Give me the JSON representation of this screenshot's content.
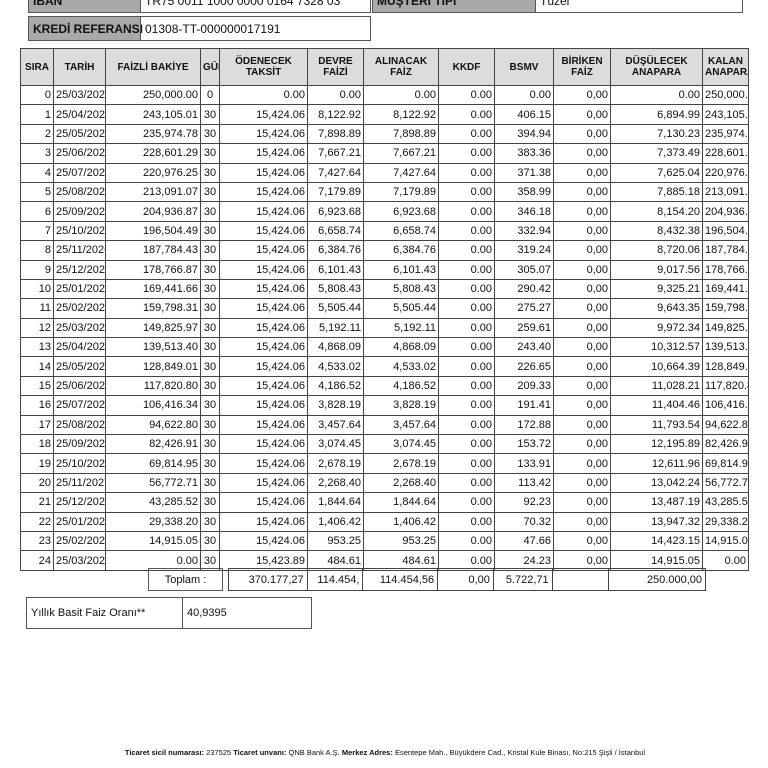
{
  "info": {
    "iban_label": "IBAN",
    "iban_value": "TR75 0011 1000 0000 0164 7328 03",
    "customer_type_label": "MÜŞTERİ TİPİ",
    "customer_type_value": "Tüzel",
    "credit_ref_label": "KREDİ REFERANSI",
    "credit_ref_value": "01308-TT-000000017191"
  },
  "table": {
    "headers": [
      "SIRA",
      "TARİH",
      "FAİZLİ BAKİYE",
      "GÜN",
      "ÖDENECEK TAKSİT",
      "DEVRE FAİZİ",
      "ALINACAK FAİZ",
      "KKDF",
      "BSMV",
      "BİRİKEN FAİZ",
      "DÜŞÜLECEK ANAPARA",
      "KALAN ANAPARA"
    ],
    "rows": [
      [
        "0",
        "25/03/2026",
        "250,000.00",
        "0",
        "0.00",
        "0.00",
        "0.00",
        "0.00",
        "0.00",
        "0,00",
        "0.00",
        "250,000.0"
      ],
      [
        "1",
        "25/04/2026",
        "243,105.01",
        "30",
        "15,424.06",
        "8,122.92",
        "8,122.92",
        "0.00",
        "406.15",
        "0,00",
        "6,894.99",
        "243,105.0"
      ],
      [
        "2",
        "25/05/2026",
        "235,974.78",
        "30",
        "15,424.06",
        "7,898.89",
        "7,898.89",
        "0.00",
        "394.94",
        "0,00",
        "7,130.23",
        "235,974.7"
      ],
      [
        "3",
        "25/06/2026",
        "228,601.29",
        "30",
        "15,424.06",
        "7,667.21",
        "7,667.21",
        "0.00",
        "383.36",
        "0,00",
        "7,373.49",
        "228,601.2"
      ],
      [
        "4",
        "25/07/2026",
        "220,976.25",
        "30",
        "15,424.06",
        "7,427.64",
        "7,427.64",
        "0.00",
        "371.38",
        "0,00",
        "7,625.04",
        "220,976.2"
      ],
      [
        "5",
        "25/08/2026",
        "213,091.07",
        "30",
        "15,424.06",
        "7,179.89",
        "7,179.89",
        "0.00",
        "358.99",
        "0,00",
        "7,885.18",
        "213,091.0"
      ],
      [
        "6",
        "25/09/2026",
        "204,936.87",
        "30",
        "15,424.06",
        "6,923.68",
        "6,923.68",
        "0.00",
        "346.18",
        "0,00",
        "8,154.20",
        "204,936.8"
      ],
      [
        "7",
        "25/10/2026",
        "196,504.49",
        "30",
        "15,424.06",
        "6,658.74",
        "6,658.74",
        "0.00",
        "332.94",
        "0,00",
        "8,432.38",
        "196,504.4"
      ],
      [
        "8",
        "25/11/2026",
        "187,784.43",
        "30",
        "15,424.06",
        "6,384.76",
        "6,384.76",
        "0.00",
        "319.24",
        "0,00",
        "8,720.06",
        "187,784.4"
      ],
      [
        "9",
        "25/12/2026",
        "178,766.87",
        "30",
        "15,424.06",
        "6,101.43",
        "6,101.43",
        "0.00",
        "305.07",
        "0,00",
        "9,017.56",
        "178,766.8"
      ],
      [
        "10",
        "25/01/2027",
        "169,441.66",
        "30",
        "15,424.06",
        "5,808.43",
        "5,808.43",
        "0.00",
        "290.42",
        "0,00",
        "9,325.21",
        "169,441.6"
      ],
      [
        "11",
        "25/02/2027",
        "159,798.31",
        "30",
        "15,424.06",
        "5,505.44",
        "5,505.44",
        "0.00",
        "275.27",
        "0,00",
        "9,643.35",
        "159,798.3"
      ],
      [
        "12",
        "25/03/2027",
        "149,825.97",
        "30",
        "15,424.06",
        "5,192.11",
        "5,192.11",
        "0.00",
        "259.61",
        "0,00",
        "9,972.34",
        "149,825.9"
      ],
      [
        "13",
        "25/04/2027",
        "139,513.40",
        "30",
        "15,424.06",
        "4,868.09",
        "4,868.09",
        "0.00",
        "243.40",
        "0,00",
        "10,312.57",
        "139,513.4"
      ],
      [
        "14",
        "25/05/2027",
        "128,849.01",
        "30",
        "15,424.06",
        "4,533.02",
        "4,533.02",
        "0.00",
        "226.65",
        "0,00",
        "10,664.39",
        "128,849.0"
      ],
      [
        "15",
        "25/06/2027",
        "117,820.80",
        "30",
        "15,424.06",
        "4,186.52",
        "4,186.52",
        "0.00",
        "209.33",
        "0,00",
        "11,028.21",
        "117,820.8"
      ],
      [
        "16",
        "25/07/2027",
        "106,416.34",
        "30",
        "15,424.06",
        "3,828.19",
        "3,828.19",
        "0.00",
        "191.41",
        "0,00",
        "11,404.46",
        "106,416.3"
      ],
      [
        "17",
        "25/08/2027",
        "94,622.80",
        "30",
        "15,424.06",
        "3,457.64",
        "3,457.64",
        "0.00",
        "172.88",
        "0,00",
        "11,793.54",
        "94,622.80"
      ],
      [
        "18",
        "25/09/2027",
        "82,426.91",
        "30",
        "15,424.06",
        "3,074.45",
        "3,074.45",
        "0.00",
        "153.72",
        "0,00",
        "12,195.89",
        "82,426.91"
      ],
      [
        "19",
        "25/10/2027",
        "69,814.95",
        "30",
        "15,424.06",
        "2,678.19",
        "2,678.19",
        "0.00",
        "133.91",
        "0,00",
        "12,611.96",
        "69,814.95"
      ],
      [
        "20",
        "25/11/2027",
        "56,772.71",
        "30",
        "15,424.06",
        "2,268.40",
        "2,268.40",
        "0.00",
        "113.42",
        "0,00",
        "13,042.24",
        "56,772.71"
      ],
      [
        "21",
        "25/12/2027",
        "43,285.52",
        "30",
        "15,424.06",
        "1,844.64",
        "1,844.64",
        "0.00",
        "92.23",
        "0,00",
        "13,487.19",
        "43,285.52"
      ],
      [
        "22",
        "25/01/2028",
        "29,338.20",
        "30",
        "15,424.06",
        "1,406.42",
        "1,406.42",
        "0.00",
        "70.32",
        "0,00",
        "13,947.32",
        "29,338.20"
      ],
      [
        "23",
        "25/02/2028",
        "14,915.05",
        "30",
        "15,424.06",
        "953.25",
        "953.25",
        "0.00",
        "47.66",
        "0,00",
        "14,423.15",
        "14,915.05"
      ],
      [
        "24",
        "25/03/2028",
        "0.00",
        "30",
        "15,423.89",
        "484.61",
        "484.61",
        "0.00",
        "24.23",
        "0,00",
        "14,915.05",
        "0.00"
      ]
    ]
  },
  "totals": {
    "label": "Toplam :",
    "values": [
      "370.177,27",
      "114.454,",
      "114.454,56",
      "0,00",
      "5.722,71",
      "",
      "250.000,00"
    ]
  },
  "rate": {
    "label": "Yıllık Basit Faiz Oranı**",
    "value": "40,9395"
  },
  "footer": {
    "k1": "Ticaret sicil numarası:",
    "v1": " 237525 ",
    "k2": "Ticaret unvanı:",
    "v2": " QNB Bank A.Ş. ",
    "k3": "Merkez Adres:",
    "v3": " Esentepe Mah., Büyükdere Cad., Kristal Kule Binası, No:215 Şişli / İstanbul"
  }
}
